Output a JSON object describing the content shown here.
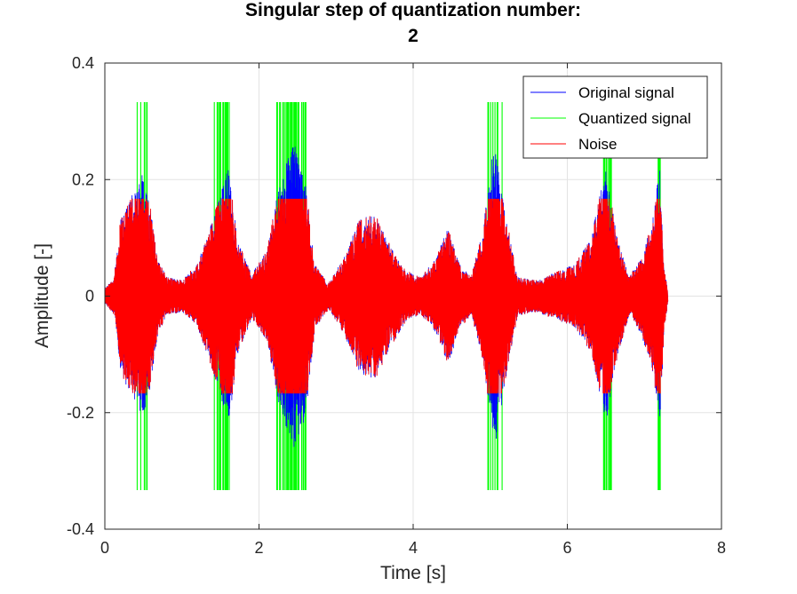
{
  "chart_data": {
    "type": "line",
    "title": [
      "Singular step of quantization number:",
      "2"
    ],
    "xlabel": "Time [s]",
    "ylabel": "Amplitude [-]",
    "xlim": [
      0,
      8
    ],
    "ylim": [
      -0.4,
      0.4
    ],
    "xticks": [
      0,
      2,
      4,
      6,
      8
    ],
    "yticks": [
      0.4,
      0.2,
      0,
      -0.2,
      -0.4
    ],
    "xtick_labels": [
      "0",
      "2",
      "4",
      "6",
      "8"
    ],
    "ytick_labels": [
      "0.4",
      "0.2",
      "0",
      "-0.2",
      "-0.4"
    ],
    "grid": true,
    "legend_position": "top-right",
    "duration_s": 7.3,
    "quantization_levels": [
      -0.333,
      0,
      0.333
    ],
    "series": [
      {
        "name": "Original signal",
        "color": "#0000ff"
      },
      {
        "name": "Quantized signal",
        "color": "#00ff00",
        "bursts": [
          [
            0.41,
            0.55
          ],
          [
            1.42,
            1.63
          ],
          [
            2.23,
            2.62
          ],
          [
            4.97,
            5.17
          ],
          [
            6.47,
            6.61
          ],
          [
            7.16,
            7.21
          ]
        ]
      },
      {
        "name": "Noise",
        "color": "#ff0000",
        "range": [
          -0.167,
          0.167
        ]
      }
    ]
  }
}
